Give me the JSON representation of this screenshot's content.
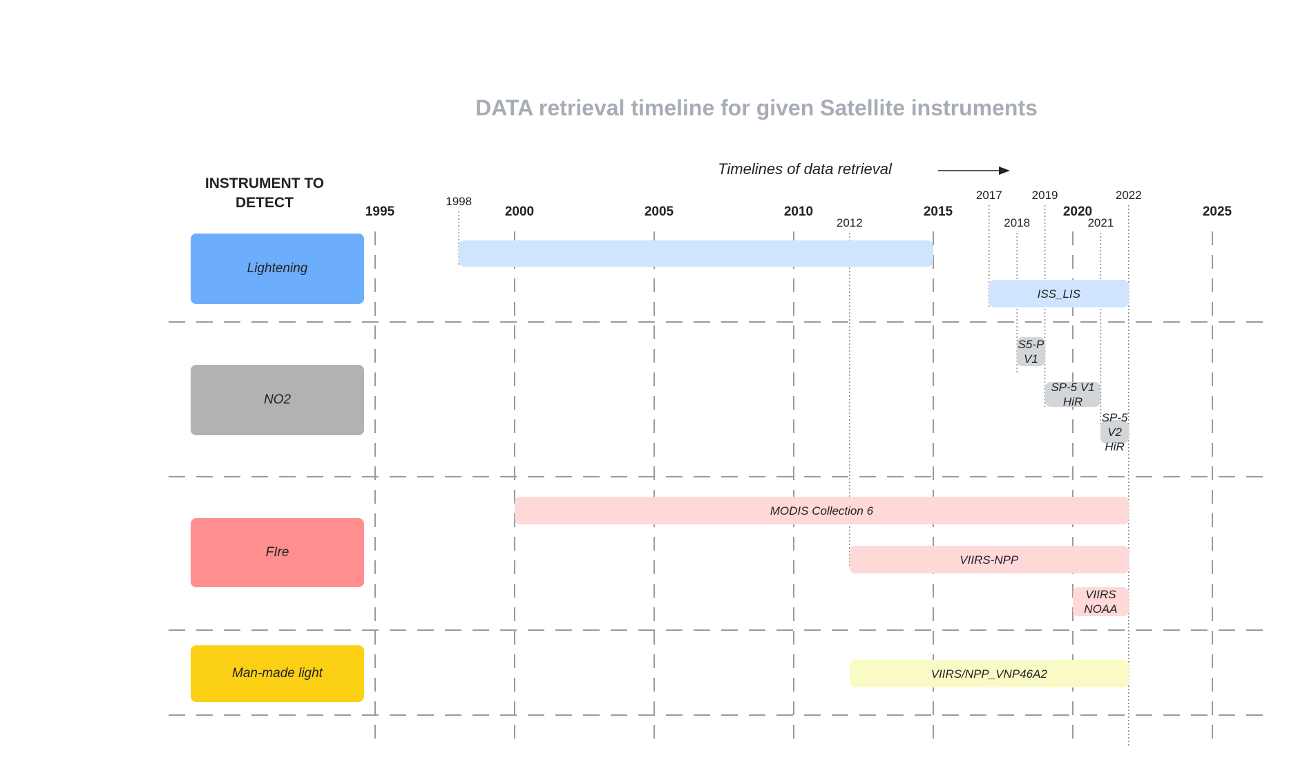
{
  "title": "DATA retrieval timeline for given Satellite instruments",
  "subtitle": "Timelines of data retrieval",
  "left_header": "INSTRUMENT TO\nDETECT",
  "major_years": [
    "1995",
    "2000",
    "2005",
    "2010",
    "2015",
    "2020",
    "2025"
  ],
  "minor_years": [
    "1998",
    "2012",
    "2017",
    "2018",
    "2019",
    "2021",
    "2022"
  ],
  "categories": [
    {
      "label": "Lightening",
      "color": "#6daefc"
    },
    {
      "label": "NO2",
      "color": "#b2b2b2"
    },
    {
      "label": "FIre",
      "color": "#ff8f8f"
    },
    {
      "label": "Man-made light",
      "color": "#fcd015"
    }
  ],
  "bars": [
    {
      "label": "",
      "category": "Lightening",
      "start": 1998,
      "end": 2015,
      "color": "#cfe4fe"
    },
    {
      "label": "ISS_LIS",
      "category": "Lightening",
      "start": 2017,
      "end": 2022,
      "color": "#cfe4fe"
    },
    {
      "label": "S5-P\nV1",
      "category": "NO2",
      "start": 2018,
      "end": 2019,
      "color": "#d2d5da"
    },
    {
      "label": "SP-5 V1\nHiR",
      "category": "NO2",
      "start": 2019,
      "end": 2021,
      "color": "#d2d5da"
    },
    {
      "label": "SP-5\nV2\nHiR",
      "category": "NO2",
      "start": 2021,
      "end": 2022,
      "color": "#d2d5da"
    },
    {
      "label": "MODIS Collection 6",
      "category": "FIre",
      "start": 2000,
      "end": 2022,
      "color": "#ffd8d8"
    },
    {
      "label": "VIIRS-NPP",
      "category": "FIre",
      "start": 2012,
      "end": 2022,
      "color": "#ffd8d8"
    },
    {
      "label": "VIIRS\nNOAA",
      "category": "FIre",
      "start": 2020,
      "end": 2022,
      "color": "#ffd8d8"
    },
    {
      "label": "VIIRS/NPP_VNP46A2",
      "category": "Man-made light",
      "start": 2012,
      "end": 2022,
      "color": "#fafac7"
    }
  ]
}
